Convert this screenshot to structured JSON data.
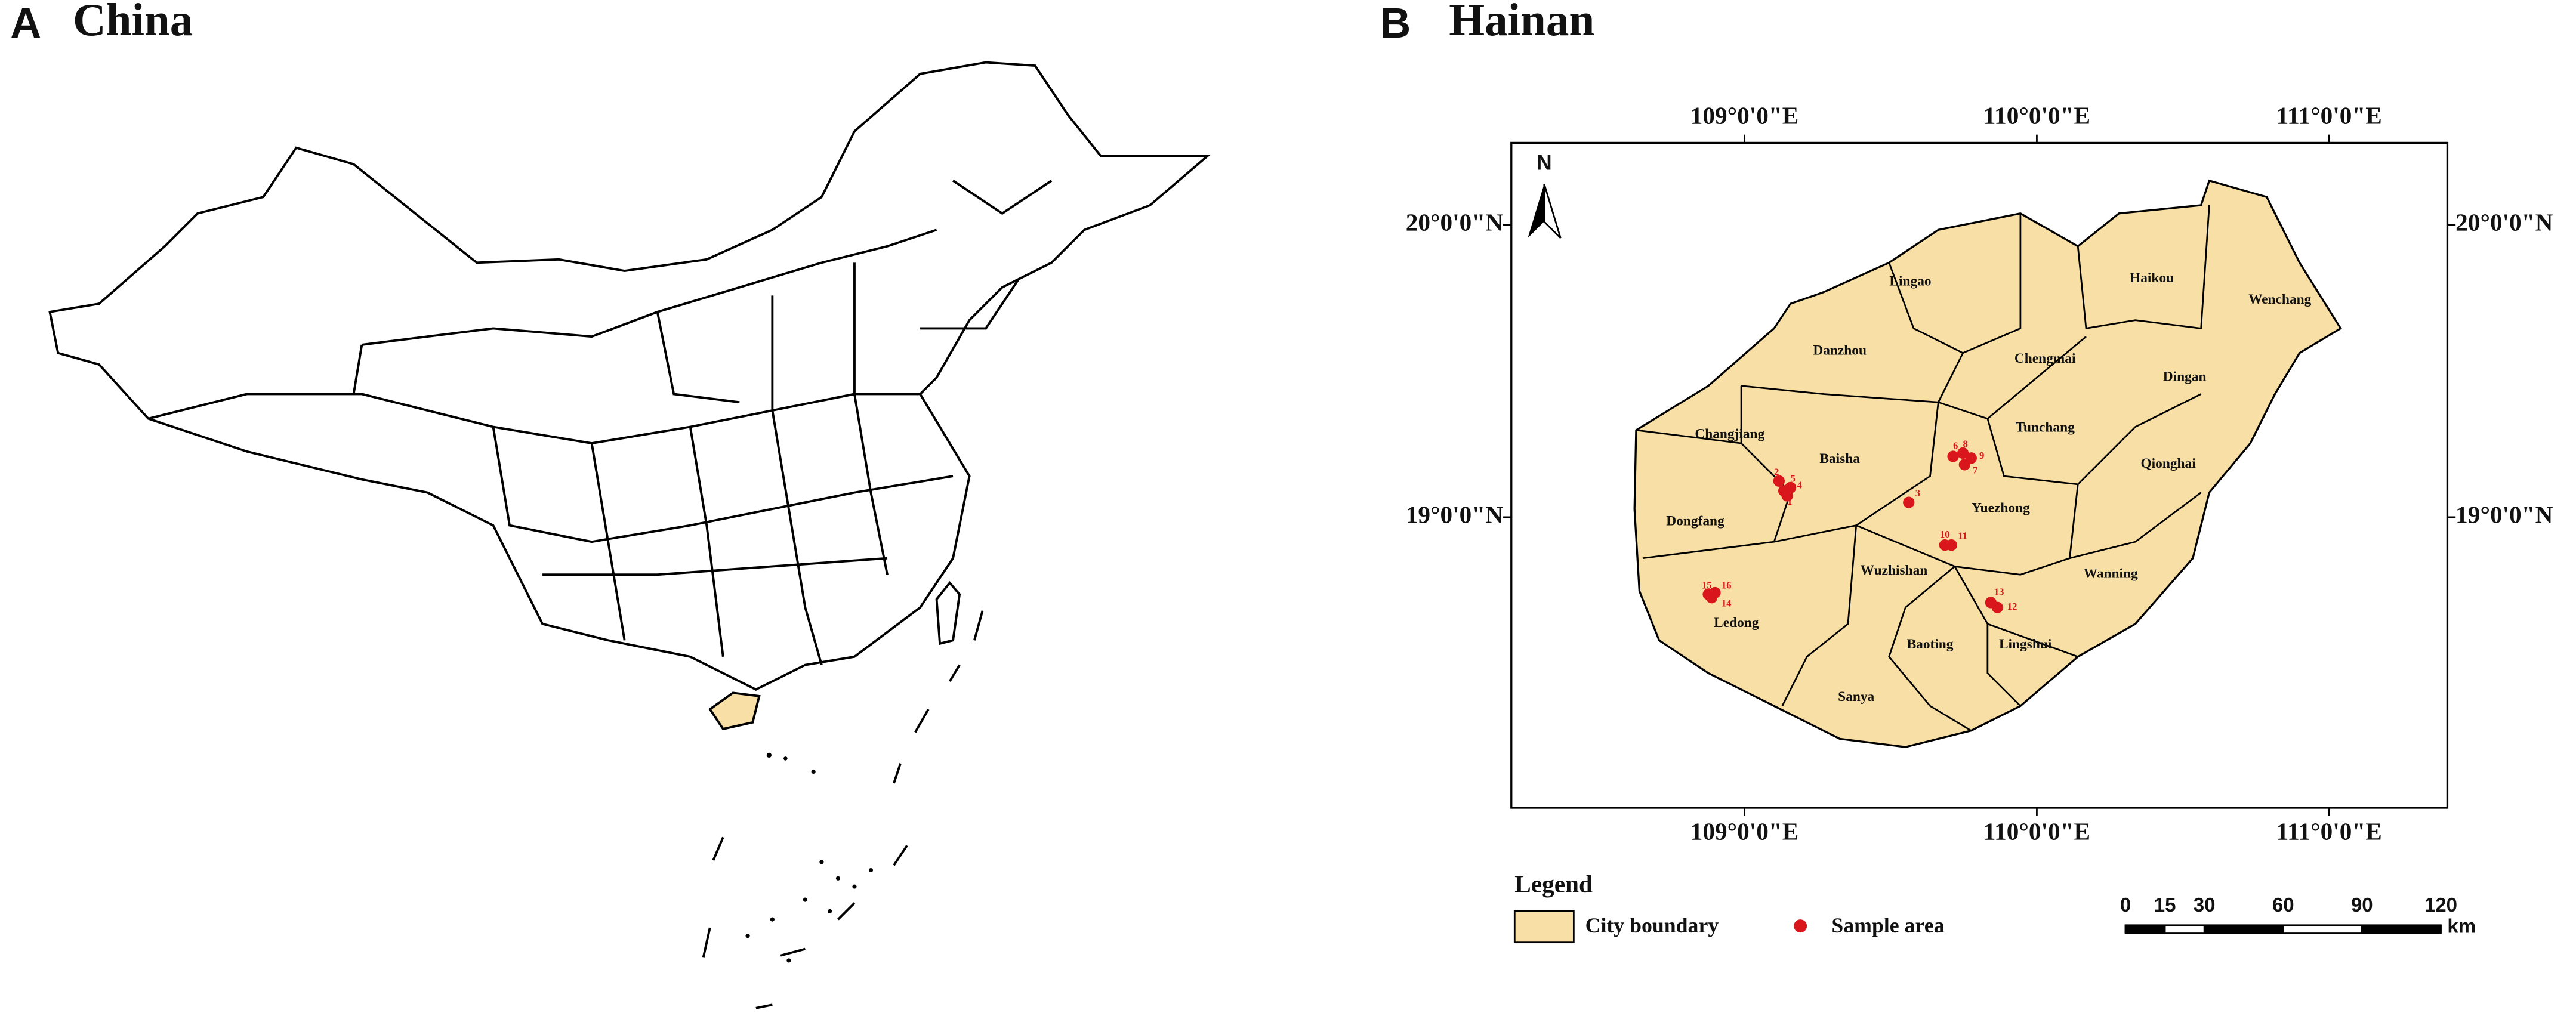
{
  "panels": [
    {
      "label": "A",
      "title": "China"
    },
    {
      "label": "B",
      "title": "Hainan"
    }
  ],
  "hainan_map": {
    "north": "N",
    "top_labels": [
      "109°0'0\"E",
      "110°0'0\"E",
      "111°0'0\"E"
    ],
    "bottom_labels": [
      "109°0'0\"E",
      "110°0'0\"E",
      "111°0'0\"E"
    ],
    "left_labels": [
      "20°0'0\"N",
      "19°0'0\"N"
    ],
    "right_labels": [
      "20°0'0\"N",
      "19°0'0\"N"
    ],
    "cities": [
      "Lingao",
      "Haikou",
      "Wenchang",
      "Chengmai",
      "Danzhou",
      "Dingan",
      "Tunchang",
      "Changjiang",
      "Baisha",
      "Qionghai",
      "Yuezhong",
      "Dongfang",
      "Wuzhishan",
      "Wanning",
      "Ledong",
      "Baoting",
      "Lingshui",
      "Sanya"
    ],
    "samples": [
      "1",
      "2",
      "3",
      "4",
      "5",
      "6",
      "7",
      "8",
      "9",
      "10",
      "11",
      "12",
      "13",
      "14",
      "15",
      "16"
    ]
  },
  "legend": {
    "title": "Legend",
    "items": [
      "City boundary",
      "Sample area"
    ]
  },
  "scale_bar": {
    "ticks": [
      0,
      15,
      30,
      60,
      90,
      120
    ],
    "unit": "km"
  }
}
